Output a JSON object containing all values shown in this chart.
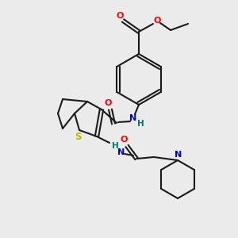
{
  "background_color": "#ebebeb",
  "bond_color": "#1a1a1a",
  "atom_colors": {
    "O": "#ff0000",
    "N": "#0000cc",
    "S": "#b8b800",
    "H": "#007777",
    "C": "#1a1a1a"
  },
  "figsize": [
    3.0,
    3.0
  ],
  "dpi": 100
}
